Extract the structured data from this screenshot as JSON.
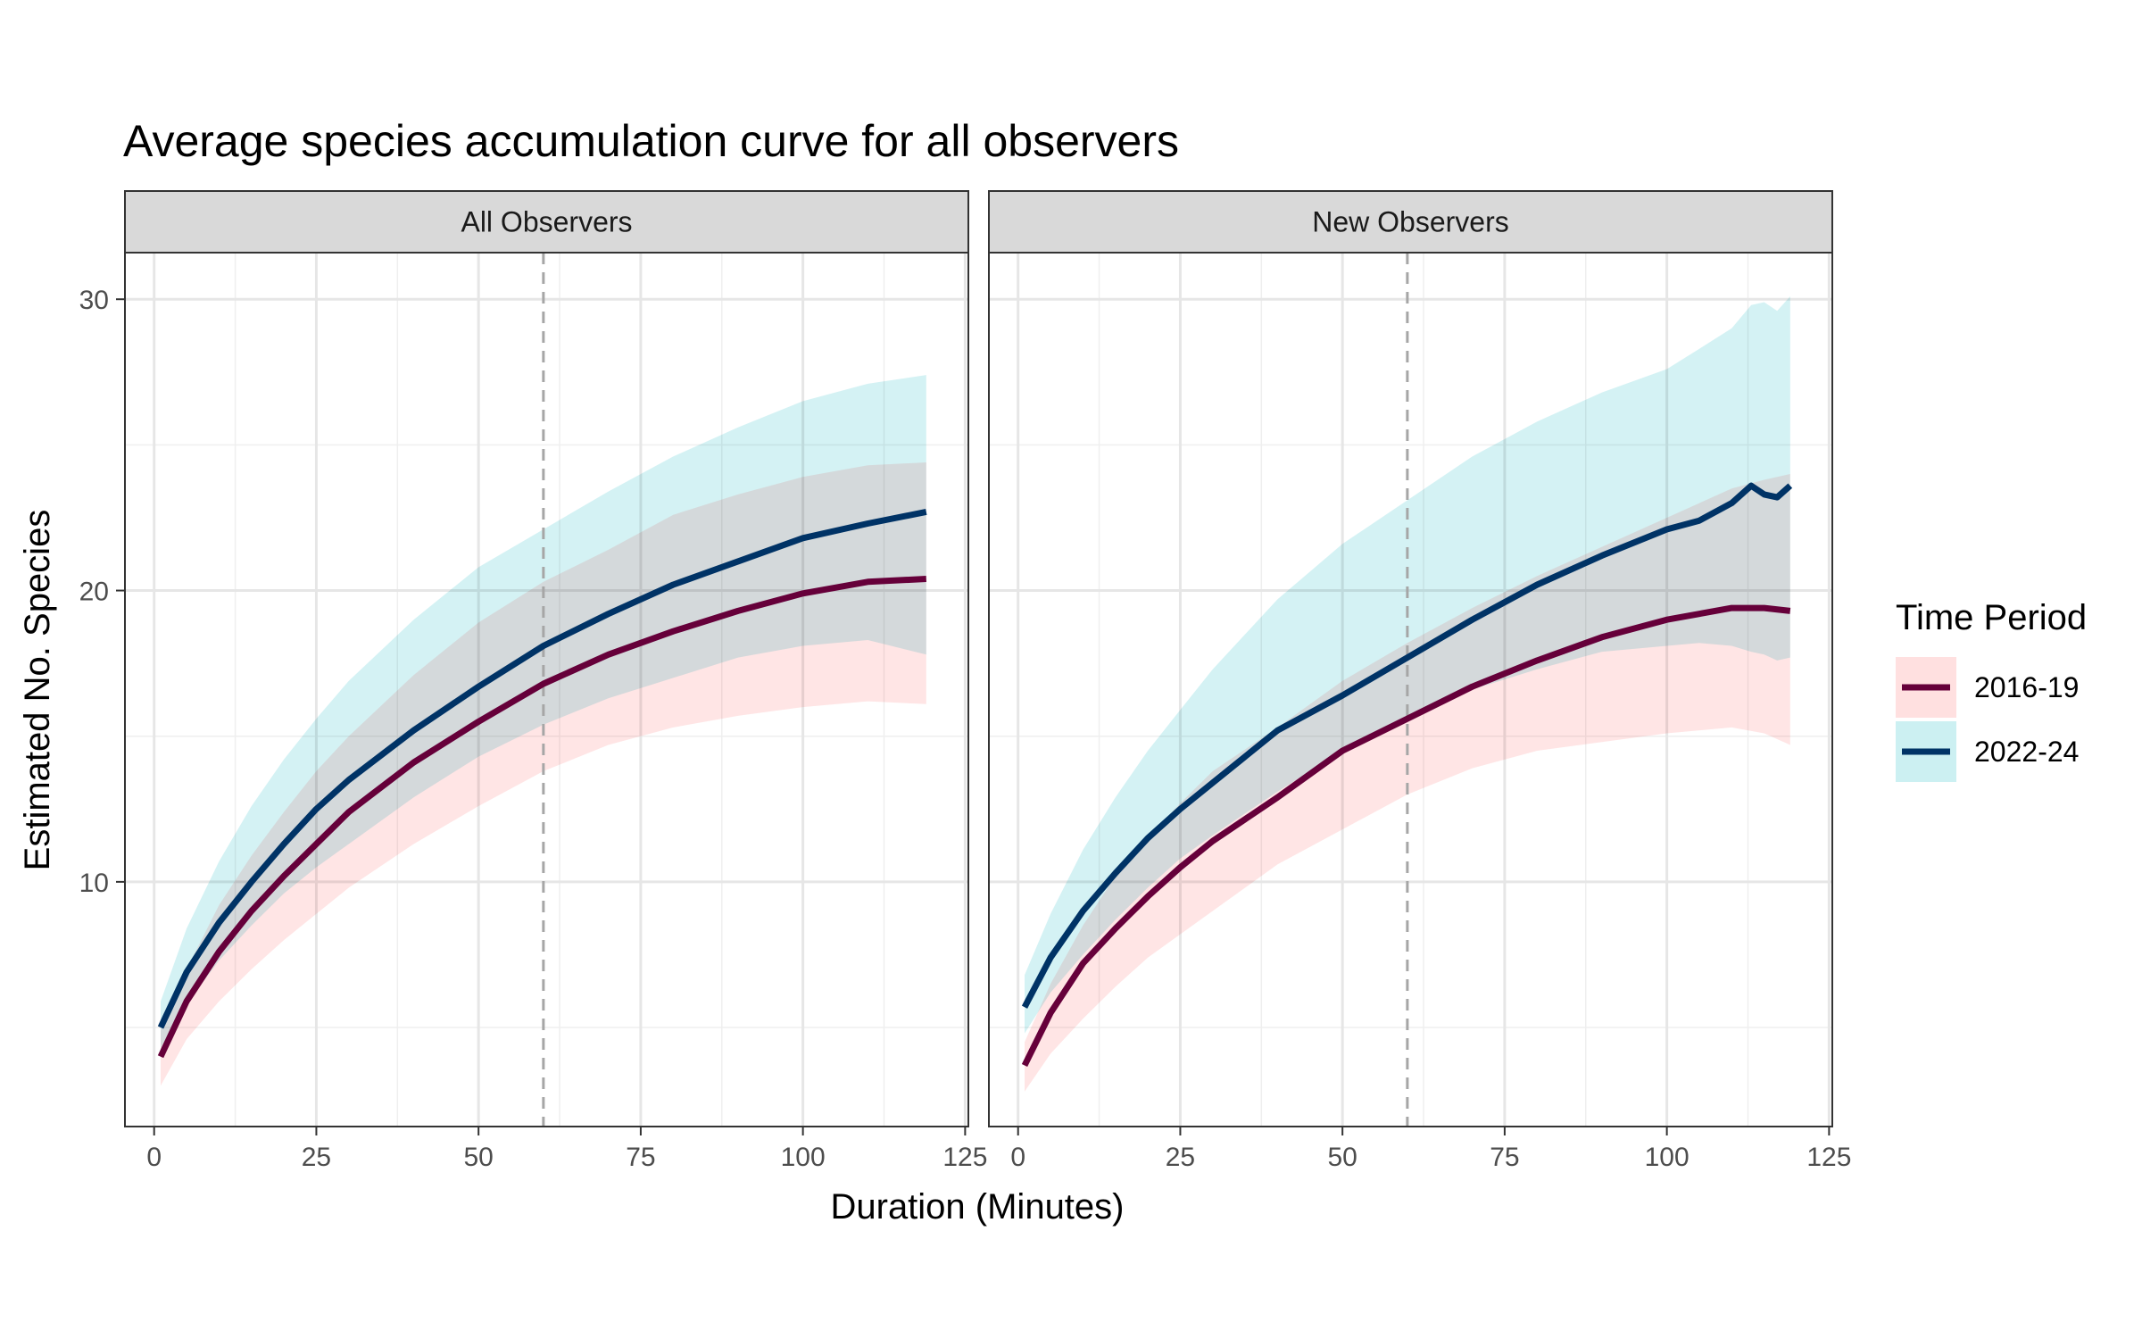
{
  "chart_data": {
    "type": "line",
    "title": "Average species accumulation curve for all observers",
    "xlabel": "Duration (Minutes)",
    "ylabel": "Estimated No. Species",
    "xlim": [
      -4.5,
      125.5
    ],
    "ylim": [
      1.6,
      31.6
    ],
    "x_ticks": [
      0,
      25,
      50,
      75,
      100,
      125
    ],
    "y_ticks": [
      10,
      20,
      30
    ],
    "grid": true,
    "reference_line": {
      "x": 60,
      "style": "dashed"
    },
    "legend": {
      "title": "Time Period",
      "position": "right",
      "items": [
        {
          "label": "2016-19",
          "line_color": "#66003a",
          "fill_color": "#ffe0e0"
        },
        {
          "label": "2022-24",
          "line_color": "#003366",
          "fill_color": "#ccf0f2"
        }
      ]
    },
    "panels": [
      {
        "name": "All Observers",
        "series": [
          {
            "name": "2016-19",
            "x": [
              1,
              5,
              10,
              15,
              20,
              25,
              30,
              40,
              50,
              60,
              70,
              80,
              90,
              100,
              110,
              119
            ],
            "y": [
              4.0,
              5.9,
              7.6,
              9.0,
              10.2,
              11.3,
              12.4,
              14.1,
              15.5,
              16.8,
              17.8,
              18.6,
              19.3,
              19.9,
              20.3,
              20.4
            ],
            "lower": [
              3.0,
              4.6,
              5.9,
              7.0,
              8.0,
              8.9,
              9.8,
              11.3,
              12.6,
              13.8,
              14.7,
              15.3,
              15.7,
              16.0,
              16.2,
              16.1
            ],
            "upper": [
              4.9,
              7.0,
              9.2,
              10.9,
              12.4,
              13.8,
              15.0,
              17.1,
              18.9,
              20.3,
              21.4,
              22.6,
              23.3,
              23.9,
              24.3,
              24.4
            ]
          },
          {
            "name": "2022-24",
            "x": [
              1,
              5,
              10,
              15,
              20,
              25,
              30,
              40,
              50,
              60,
              70,
              80,
              90,
              100,
              110,
              119
            ],
            "y": [
              5.0,
              6.9,
              8.6,
              10.0,
              11.3,
              12.5,
              13.5,
              15.2,
              16.7,
              18.1,
              19.2,
              20.2,
              21.0,
              21.8,
              22.3,
              22.7
            ],
            "lower": [
              4.3,
              5.8,
              7.3,
              8.5,
              9.6,
              10.5,
              11.3,
              12.9,
              14.3,
              15.4,
              16.3,
              17.0,
              17.7,
              18.1,
              18.3,
              17.8
            ],
            "upper": [
              5.9,
              8.4,
              10.7,
              12.6,
              14.2,
              15.6,
              16.9,
              19.0,
              20.8,
              22.1,
              23.4,
              24.6,
              25.6,
              26.5,
              27.1,
              27.4
            ]
          }
        ]
      },
      {
        "name": "New Observers",
        "series": [
          {
            "name": "2016-19",
            "x": [
              1,
              5,
              10,
              15,
              20,
              25,
              30,
              40,
              50,
              60,
              70,
              80,
              90,
              100,
              110,
              115,
              119
            ],
            "y": [
              3.7,
              5.5,
              7.2,
              8.4,
              9.5,
              10.5,
              11.4,
              12.9,
              14.5,
              15.6,
              16.7,
              17.6,
              18.4,
              19.0,
              19.4,
              19.4,
              19.3
            ],
            "lower": [
              2.8,
              4.1,
              5.3,
              6.4,
              7.4,
              8.2,
              9.0,
              10.6,
              11.8,
              13.0,
              13.9,
              14.5,
              14.8,
              15.1,
              15.3,
              15.1,
              14.7
            ],
            "upper": [
              4.5,
              6.5,
              8.5,
              10.2,
              11.5,
              12.7,
              13.8,
              15.3,
              16.9,
              18.2,
              19.4,
              20.5,
              21.5,
              22.5,
              23.5,
              23.8,
              24.0
            ]
          },
          {
            "name": "2022-24",
            "x": [
              1,
              5,
              10,
              15,
              20,
              25,
              30,
              40,
              50,
              60,
              70,
              80,
              90,
              100,
              105,
              110,
              113,
              115,
              117,
              119
            ],
            "y": [
              5.7,
              7.4,
              9.0,
              10.3,
              11.5,
              12.5,
              13.4,
              15.2,
              16.4,
              17.7,
              19.0,
              20.2,
              21.2,
              22.1,
              22.4,
              23.0,
              23.6,
              23.3,
              23.2,
              23.6
            ],
            "lower": [
              4.8,
              6.2,
              7.5,
              8.7,
              9.8,
              10.8,
              11.6,
              13.1,
              14.5,
              15.6,
              16.6,
              17.3,
              17.9,
              18.1,
              18.2,
              18.1,
              17.9,
              17.8,
              17.6,
              17.7
            ],
            "upper": [
              6.8,
              8.9,
              11.1,
              12.9,
              14.5,
              15.9,
              17.3,
              19.7,
              21.6,
              23.1,
              24.6,
              25.8,
              26.8,
              27.6,
              28.3,
              29.0,
              29.8,
              29.9,
              29.6,
              30.1
            ]
          }
        ]
      }
    ]
  }
}
